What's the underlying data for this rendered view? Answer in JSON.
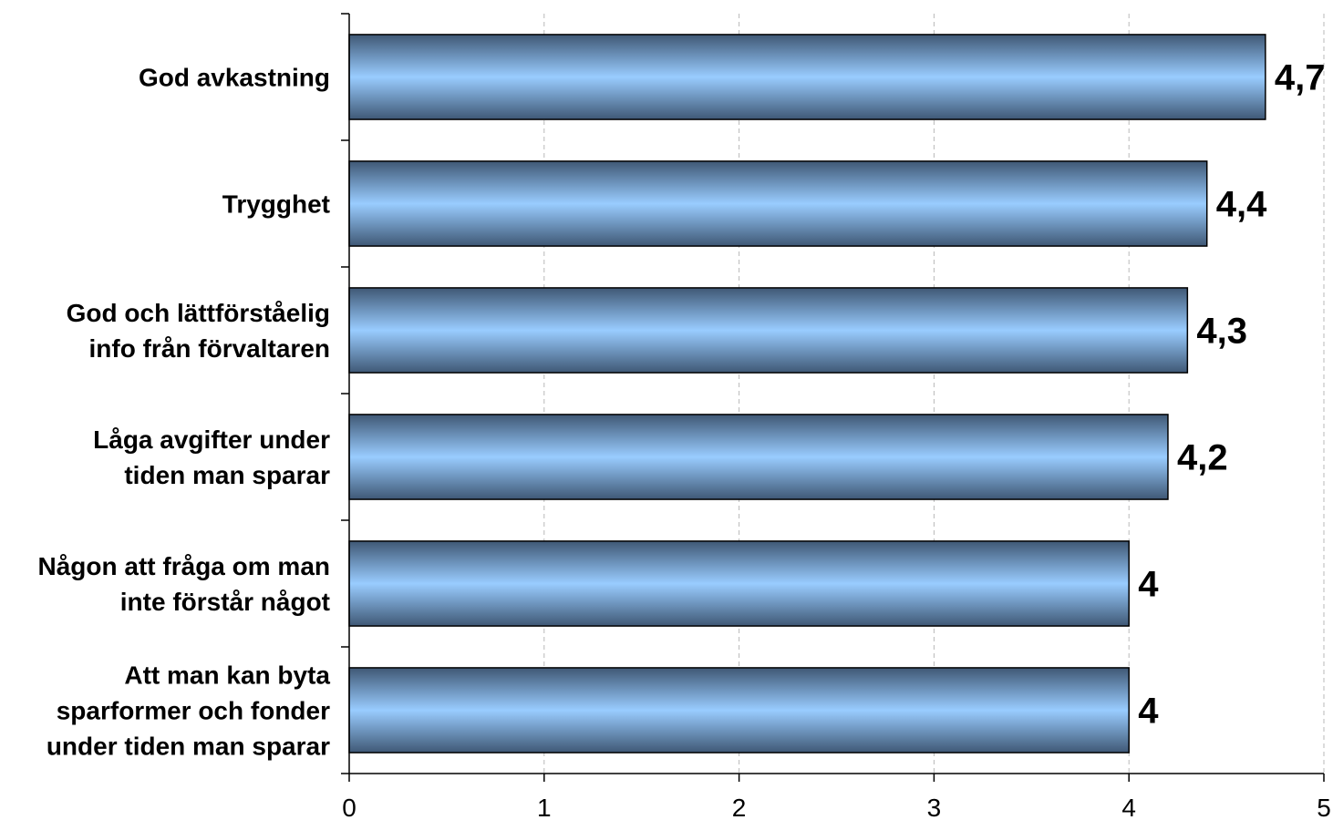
{
  "chart_data": {
    "type": "bar",
    "orientation": "horizontal",
    "categories": [
      [
        "God avkastning"
      ],
      [
        "Trygghet"
      ],
      [
        "God och lättförståelig",
        "info från förvaltaren"
      ],
      [
        "Låga avgifter under",
        "tiden man sparar"
      ],
      [
        "Någon att fråga om man",
        "inte förstår något"
      ],
      [
        "Att man kan byta",
        "sparformer och fonder",
        "under tiden man sparar"
      ]
    ],
    "values": [
      4.7,
      4.4,
      4.3,
      4.2,
      4,
      4
    ],
    "value_labels": [
      "4,7",
      "4,4",
      "4,3",
      "4,2",
      "4",
      "4"
    ],
    "xlim": [
      0,
      5
    ],
    "xticks": [
      0,
      1,
      2,
      3,
      4,
      5
    ],
    "xtick_labels": [
      "0",
      "1",
      "2",
      "3",
      "4",
      "5"
    ],
    "grid": "vertical-dashed",
    "legend": "none",
    "colors": {
      "bar_light": "#99ccff",
      "bar_dark": "#3f5875"
    }
  }
}
